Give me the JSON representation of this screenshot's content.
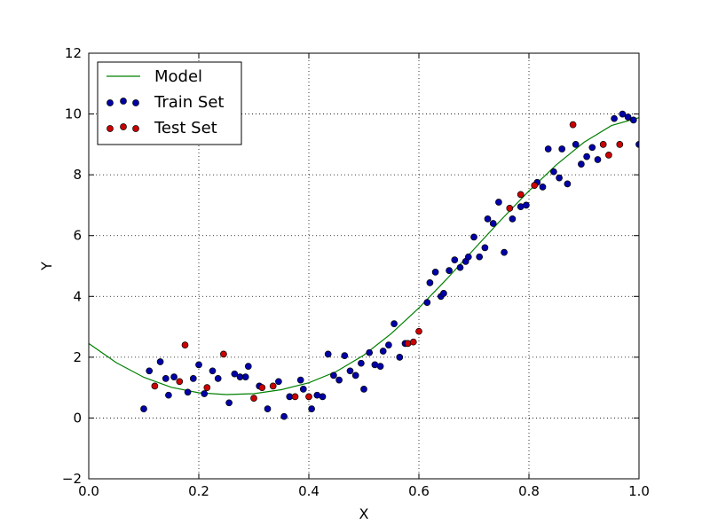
{
  "chart_data": {
    "type": "scatter",
    "title": "",
    "xlabel": "X",
    "ylabel": "Y",
    "xlim": [
      0.0,
      1.0
    ],
    "ylim": [
      -2,
      12
    ],
    "xticks": [
      0.0,
      0.2,
      0.4,
      0.6,
      0.8,
      1.0
    ],
    "xtick_labels": [
      "0.0",
      "0.2",
      "0.4",
      "0.6",
      "0.8",
      "1.0"
    ],
    "yticks": [
      -2,
      0,
      2,
      4,
      6,
      8,
      10,
      12
    ],
    "ytick_labels": [
      "−2",
      "0",
      "2",
      "4",
      "6",
      "8",
      "10",
      "12"
    ],
    "grid": true,
    "legend_position": "top-left",
    "series": [
      {
        "name": "Model",
        "kind": "line",
        "color": "#008000",
        "points": [
          [
            0.0,
            2.45
          ],
          [
            0.05,
            1.82
          ],
          [
            0.1,
            1.34
          ],
          [
            0.15,
            1.01
          ],
          [
            0.2,
            0.83
          ],
          [
            0.25,
            0.77
          ],
          [
            0.3,
            0.8
          ],
          [
            0.35,
            0.93
          ],
          [
            0.4,
            1.16
          ],
          [
            0.45,
            1.53
          ],
          [
            0.5,
            2.07
          ],
          [
            0.55,
            2.78
          ],
          [
            0.6,
            3.62
          ],
          [
            0.65,
            4.56
          ],
          [
            0.7,
            5.55
          ],
          [
            0.75,
            6.53
          ],
          [
            0.8,
            7.47
          ],
          [
            0.85,
            8.33
          ],
          [
            0.9,
            9.07
          ],
          [
            0.95,
            9.62
          ],
          [
            1.0,
            9.88
          ]
        ]
      },
      {
        "name": "Train Set",
        "kind": "scatter",
        "color": "#0000aa",
        "points": [
          [
            0.1,
            0.3
          ],
          [
            0.11,
            1.55
          ],
          [
            0.13,
            1.85
          ],
          [
            0.14,
            1.3
          ],
          [
            0.145,
            0.75
          ],
          [
            0.155,
            1.35
          ],
          [
            0.18,
            0.85
          ],
          [
            0.19,
            1.3
          ],
          [
            0.2,
            1.75
          ],
          [
            0.21,
            0.8
          ],
          [
            0.225,
            1.55
          ],
          [
            0.235,
            1.3
          ],
          [
            0.255,
            0.5
          ],
          [
            0.265,
            1.45
          ],
          [
            0.275,
            1.35
          ],
          [
            0.285,
            1.35
          ],
          [
            0.29,
            1.7
          ],
          [
            0.31,
            1.05
          ],
          [
            0.325,
            0.3
          ],
          [
            0.345,
            1.2
          ],
          [
            0.355,
            0.05
          ],
          [
            0.365,
            0.7
          ],
          [
            0.385,
            1.25
          ],
          [
            0.39,
            0.95
          ],
          [
            0.405,
            0.3
          ],
          [
            0.415,
            0.75
          ],
          [
            0.425,
            0.7
          ],
          [
            0.435,
            2.1
          ],
          [
            0.445,
            1.4
          ],
          [
            0.455,
            1.25
          ],
          [
            0.465,
            2.05
          ],
          [
            0.475,
            1.55
          ],
          [
            0.485,
            1.4
          ],
          [
            0.495,
            1.8
          ],
          [
            0.5,
            0.95
          ],
          [
            0.51,
            2.15
          ],
          [
            0.52,
            1.75
          ],
          [
            0.53,
            1.7
          ],
          [
            0.535,
            2.2
          ],
          [
            0.545,
            2.4
          ],
          [
            0.555,
            3.1
          ],
          [
            0.565,
            2.0
          ],
          [
            0.575,
            2.45
          ],
          [
            0.615,
            3.8
          ],
          [
            0.62,
            4.45
          ],
          [
            0.63,
            4.8
          ],
          [
            0.64,
            4.0
          ],
          [
            0.645,
            4.1
          ],
          [
            0.655,
            4.85
          ],
          [
            0.665,
            5.2
          ],
          [
            0.675,
            4.95
          ],
          [
            0.685,
            5.15
          ],
          [
            0.69,
            5.3
          ],
          [
            0.7,
            5.95
          ],
          [
            0.71,
            5.3
          ],
          [
            0.72,
            5.6
          ],
          [
            0.725,
            6.55
          ],
          [
            0.735,
            6.4
          ],
          [
            0.745,
            7.1
          ],
          [
            0.755,
            5.45
          ],
          [
            0.77,
            6.55
          ],
          [
            0.785,
            6.95
          ],
          [
            0.795,
            7.0
          ],
          [
            0.815,
            7.75
          ],
          [
            0.825,
            7.6
          ],
          [
            0.835,
            8.85
          ],
          [
            0.845,
            8.1
          ],
          [
            0.855,
            7.9
          ],
          [
            0.86,
            8.85
          ],
          [
            0.87,
            7.7
          ],
          [
            0.885,
            9.0
          ],
          [
            0.895,
            8.35
          ],
          [
            0.905,
            8.6
          ],
          [
            0.915,
            8.9
          ],
          [
            0.925,
            8.5
          ],
          [
            0.955,
            9.85
          ],
          [
            0.97,
            10.0
          ],
          [
            0.98,
            9.9
          ],
          [
            0.99,
            9.8
          ],
          [
            1.0,
            9.0
          ]
        ]
      },
      {
        "name": "Test Set",
        "kind": "scatter",
        "color": "#cc0000",
        "points": [
          [
            0.12,
            1.05
          ],
          [
            0.165,
            1.2
          ],
          [
            0.175,
            2.4
          ],
          [
            0.215,
            1.0
          ],
          [
            0.245,
            2.1
          ],
          [
            0.3,
            0.65
          ],
          [
            0.315,
            1.0
          ],
          [
            0.335,
            1.05
          ],
          [
            0.375,
            0.7
          ],
          [
            0.4,
            0.7
          ],
          [
            0.58,
            2.45
          ],
          [
            0.59,
            2.5
          ],
          [
            0.6,
            2.85
          ],
          [
            0.765,
            6.9
          ],
          [
            0.785,
            7.35
          ],
          [
            0.81,
            7.65
          ],
          [
            0.88,
            9.65
          ],
          [
            0.935,
            9.0
          ],
          [
            0.945,
            8.65
          ],
          [
            0.965,
            9.0
          ]
        ]
      }
    ]
  }
}
